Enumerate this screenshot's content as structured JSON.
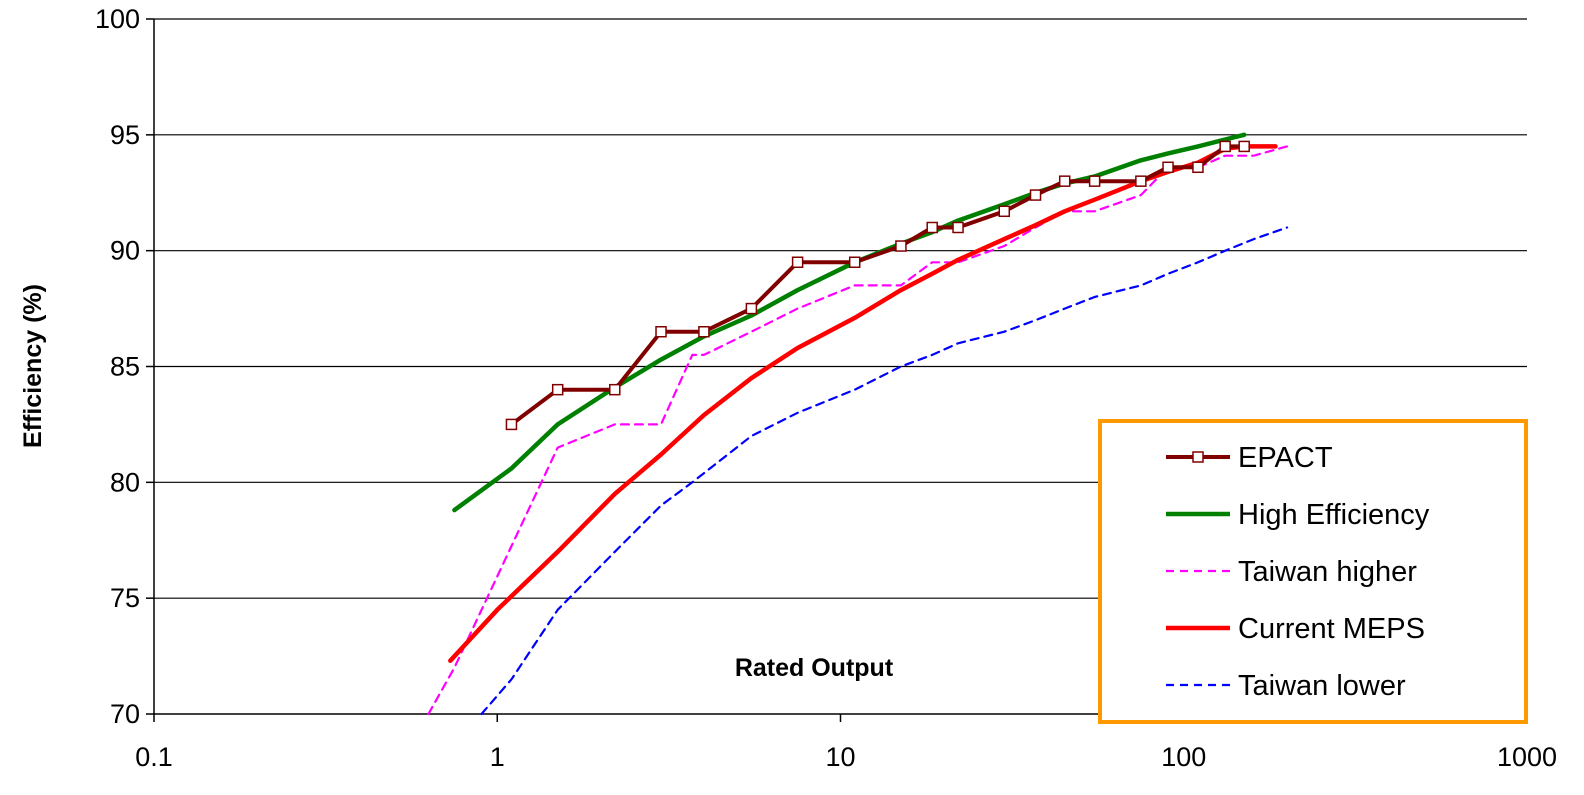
{
  "chart_data": {
    "type": "line",
    "title": "",
    "xlabel": "Rated Output",
    "ylabel": "Efficiency (%)",
    "x_scale": "log",
    "xlim": [
      0.1,
      1000
    ],
    "ylim": [
      70,
      100
    ],
    "x_ticks": [
      0.1,
      1,
      10,
      100,
      1000
    ],
    "x_tick_labels": [
      "0.1",
      "1",
      "10",
      "100",
      "1000"
    ],
    "y_ticks": [
      70,
      75,
      80,
      85,
      90,
      95,
      100
    ],
    "y_tick_labels": [
      "70",
      "75",
      "80",
      "85",
      "90",
      "95",
      "100"
    ],
    "grid": "horizontal",
    "legend_position": "bottom-right",
    "series": [
      {
        "name": "EPACT",
        "color": "#800000",
        "style": "solid-square-markers",
        "x": [
          1.1,
          1.5,
          2.2,
          3,
          4,
          5.5,
          7.5,
          11,
          15,
          18.5,
          22,
          30,
          37,
          45,
          55,
          75,
          90,
          110,
          132,
          150
        ],
        "y": [
          82.5,
          84,
          84,
          86.5,
          86.5,
          87.5,
          89.5,
          89.5,
          90.2,
          91,
          91,
          91.7,
          92.4,
          93,
          93,
          93,
          93.6,
          93.6,
          94.5,
          94.5
        ]
      },
      {
        "name": "High Efficiency",
        "color": "#008000",
        "style": "solid",
        "x": [
          0.75,
          1.1,
          1.5,
          2.2,
          3,
          4,
          5.5,
          7.5,
          11,
          15,
          18.5,
          22,
          30,
          37,
          45,
          55,
          75,
          90,
          110,
          132,
          150
        ],
        "y": [
          78.8,
          80.6,
          82.5,
          84.1,
          85.3,
          86.3,
          87.2,
          88.3,
          89.5,
          90.3,
          90.8,
          91.3,
          92.0,
          92.5,
          92.9,
          93.2,
          93.9,
          94.2,
          94.5,
          94.8,
          95.0
        ]
      },
      {
        "name": "Taiwan higher",
        "color": "#FF00FF",
        "style": "dashed",
        "x": [
          0.63,
          0.75,
          1.5,
          2.2,
          3,
          3.7,
          4,
          5.5,
          7.5,
          11,
          15,
          18.5,
          22,
          30,
          37,
          45,
          55,
          75,
          90,
          110,
          132,
          160,
          200
        ],
        "y": [
          70,
          72,
          81.5,
          82.5,
          82.5,
          85.5,
          85.5,
          86.5,
          87.5,
          88.5,
          88.5,
          89.5,
          89.5,
          90.2,
          91,
          91.7,
          91.7,
          92.4,
          93.6,
          93.6,
          94.1,
          94.1,
          94.5
        ]
      },
      {
        "name": "Current MEPS",
        "color": "#FF0000",
        "style": "solid",
        "x": [
          0.73,
          1,
          1.5,
          2.2,
          3,
          4,
          5.5,
          7.5,
          11,
          15,
          18.5,
          22,
          30,
          37,
          45,
          55,
          75,
          90,
          110,
          132,
          150,
          185
        ],
        "y": [
          72.3,
          74.5,
          77.0,
          79.5,
          81.2,
          82.9,
          84.5,
          85.8,
          87.1,
          88.3,
          89.0,
          89.6,
          90.5,
          91.1,
          91.7,
          92.2,
          93.0,
          93.4,
          93.8,
          94.4,
          94.5,
          94.5
        ]
      },
      {
        "name": "Taiwan lower",
        "color": "#0000FF",
        "style": "dashed",
        "x": [
          0.9,
          1.1,
          1.5,
          2.2,
          3,
          3.7,
          5.5,
          7.5,
          11,
          15,
          18.5,
          22,
          30,
          37,
          45,
          55,
          75,
          90,
          110,
          132,
          160,
          200
        ],
        "y": [
          70,
          71.5,
          74.5,
          77,
          79,
          80,
          82,
          83,
          84,
          85,
          85.5,
          86,
          86.5,
          87,
          87.5,
          88,
          88.5,
          89,
          89.5,
          90,
          90.5,
          91
        ]
      }
    ]
  }
}
